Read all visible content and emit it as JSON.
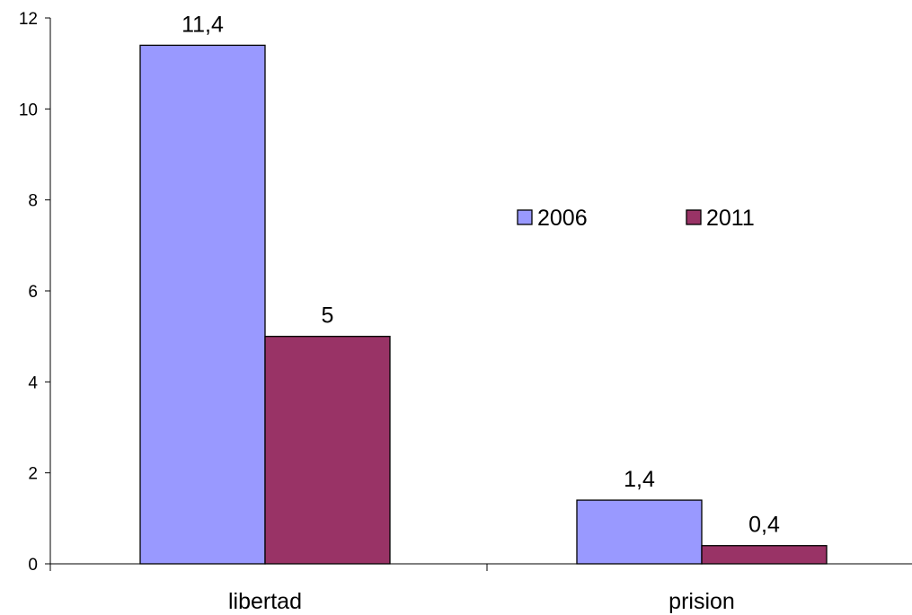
{
  "chart_data": {
    "type": "bar",
    "categories": [
      "libertad",
      "prision"
    ],
    "series": [
      {
        "name": "2006",
        "values": [
          11.4,
          1.4
        ],
        "labels": [
          "11,4",
          "1,4"
        ],
        "color": "#9999ff"
      },
      {
        "name": "2011",
        "values": [
          5,
          0.4
        ],
        "labels": [
          "5",
          "0,4"
        ],
        "color": "#993366"
      }
    ],
    "ylim": [
      0,
      12
    ],
    "y_ticks": [
      0,
      2,
      4,
      6,
      8,
      10,
      12
    ],
    "title": "",
    "xlabel": "",
    "ylabel": "",
    "grid": false,
    "legend_position": "right-middle"
  }
}
